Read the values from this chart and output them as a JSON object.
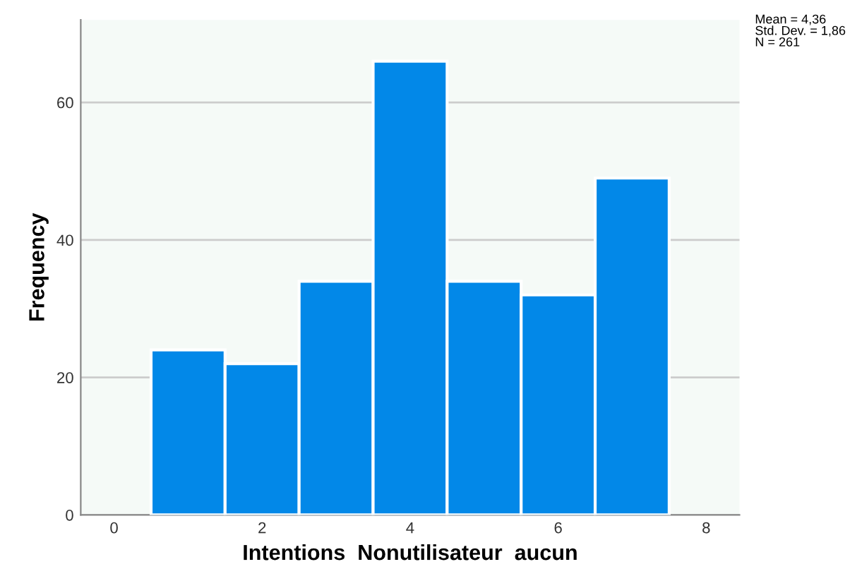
{
  "chart_data": {
    "type": "histogram",
    "bins": [
      0.5,
      1.5,
      2.5,
      3.5,
      4.5,
      5.5,
      6.5,
      7.5
    ],
    "values": [
      24,
      22,
      34,
      66,
      34,
      32,
      49
    ],
    "color": "#0288e8",
    "xlabel": "Intentions  Nonutilisateur  aucun",
    "ylabel": "Frequency",
    "xlim": [
      -0.45,
      8.45
    ],
    "xticks": [
      0,
      2,
      4,
      6,
      8
    ],
    "ylim": [
      0,
      72
    ],
    "yticks": [
      0,
      20,
      40,
      60
    ],
    "grid": "y",
    "annotations": [
      "Mean = 4,36\nStd. Dev. = 1,86\nN = 261"
    ]
  }
}
